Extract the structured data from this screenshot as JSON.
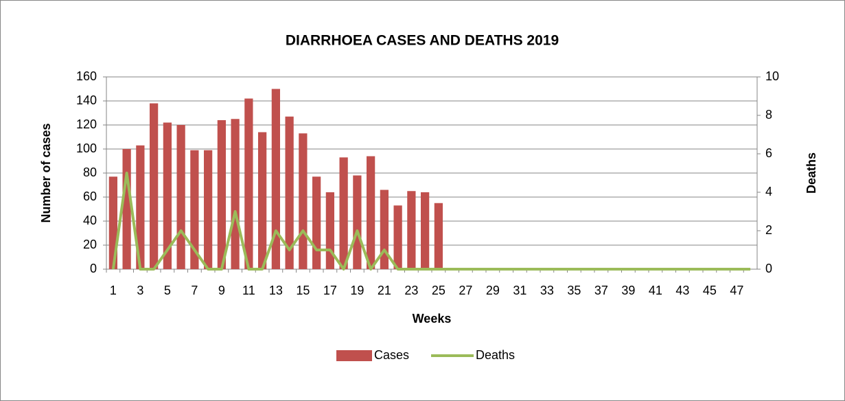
{
  "chart_data": {
    "type": "bar_line",
    "title": "DIARRHOEA CASES AND DEATHS 2019",
    "x_label": "Weeks",
    "y_label": "Number of cases",
    "y2_label": "Deaths",
    "categories": [
      1,
      null,
      3,
      null,
      5,
      null,
      7,
      null,
      9,
      null,
      11,
      null,
      13,
      null,
      15,
      null,
      17,
      null,
      19,
      null,
      21,
      null,
      23,
      null,
      25,
      null,
      27,
      null,
      29,
      null,
      31,
      null,
      33,
      null,
      35,
      null,
      37,
      null,
      39,
      null,
      41,
      null,
      43,
      null,
      45,
      null,
      47,
      null
    ],
    "series": [
      {
        "name": "Cases",
        "type": "bar",
        "color": "#c0504d",
        "values": [
          77,
          100,
          103,
          138,
          122,
          120,
          99,
          99,
          124,
          125,
          142,
          114,
          150,
          127,
          113,
          77,
          64,
          93,
          78,
          94,
          66,
          53,
          65,
          64,
          55,
          null,
          null,
          null,
          null,
          null,
          null,
          null,
          null,
          null,
          null,
          null,
          null,
          null,
          null,
          null,
          null,
          null,
          null,
          null,
          null,
          null,
          null,
          null
        ]
      },
      {
        "name": "Deaths",
        "type": "line",
        "axis": "y2",
        "color": "#9bbb59",
        "values": [
          0,
          5,
          0,
          0,
          1,
          2,
          1,
          0,
          0,
          3,
          0,
          0,
          2,
          1,
          2,
          1,
          1,
          0,
          2,
          0,
          1,
          0,
          0,
          0,
          0,
          0,
          0,
          0,
          0,
          0,
          0,
          0,
          0,
          0,
          0,
          0,
          0,
          0,
          0,
          0,
          0,
          0,
          0,
          0,
          0,
          0,
          0,
          0
        ]
      }
    ],
    "ylim": [
      0,
      160
    ],
    "yticks": [
      0,
      20,
      40,
      60,
      80,
      100,
      120,
      140,
      160
    ],
    "y2lim": [
      0,
      10
    ],
    "y2ticks": [
      0,
      2,
      4,
      6,
      8,
      10
    ],
    "grid": true,
    "legend": "bottom"
  }
}
